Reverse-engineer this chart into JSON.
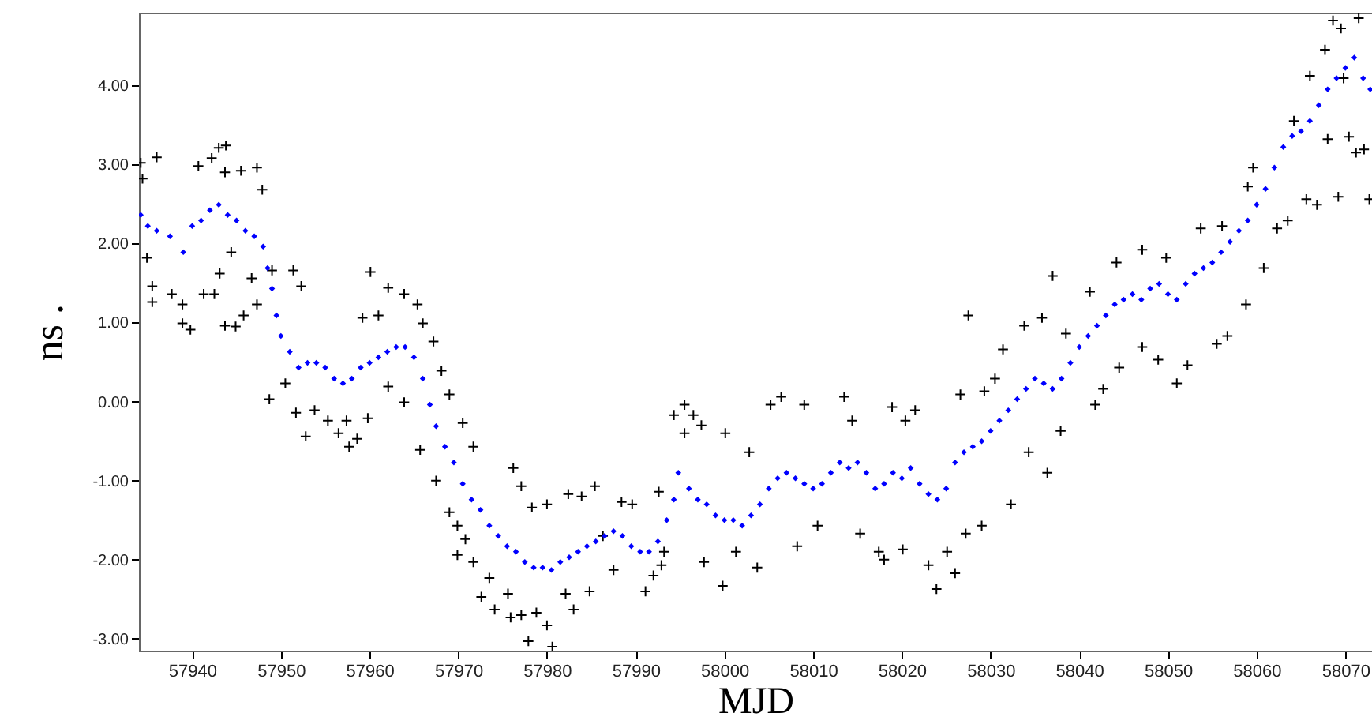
{
  "chart_data": {
    "type": "scatter",
    "xlabel": "MJD",
    "ylabel": "ns .",
    "xlim": [
      57934,
      58073
    ],
    "ylim": [
      -3.15,
      4.92
    ],
    "xticks": [
      57940,
      57950,
      57960,
      57970,
      57980,
      57990,
      58000,
      58010,
      58020,
      58030,
      58040,
      58050,
      58060,
      58070
    ],
    "yticks": [
      {
        "value": -3,
        "label": "-3.00"
      },
      {
        "value": -2,
        "label": "-2.00"
      },
      {
        "value": -1,
        "label": "-1.00"
      },
      {
        "value": 0,
        "label": "0.00"
      },
      {
        "value": 1,
        "label": "1.00"
      },
      {
        "value": 2,
        "label": "2.00"
      },
      {
        "value": 3,
        "label": "3.00"
      },
      {
        "value": 4,
        "label": "4.00"
      }
    ],
    "grid": false,
    "series": [
      {
        "color": "#000000",
        "marker": "cross",
        "x": [
          57934.2,
          57936,
          57934.4,
          57934.9,
          57935.5,
          57935.5,
          57937.7,
          57938.9,
          57938.9,
          57939.8,
          57941.3,
          57942.5,
          57940.7,
          57942.2,
          57943,
          57943.8,
          57943.7,
          57945.5,
          57947.3,
          57947.9,
          57943.7,
          57944.9,
          57945.8,
          57947.3,
          57946.7,
          57943.1,
          57944.4,
          57949,
          57951.4,
          57952.3,
          57948.7,
          57950.5,
          57951.7,
          57952.8,
          57953.8,
          57955.3,
          57956.5,
          57957.7,
          57958.6,
          57959.8,
          57957.4,
          57960.1,
          57962.1,
          57963.9,
          57965.4,
          57966,
          57959.2,
          57961,
          57962.1,
          57963.9,
          57965.7,
          57967.2,
          57968.1,
          57969,
          57970.5,
          57971.7,
          57967.5,
          57969,
          57969.9,
          57970.8,
          57969.9,
          57971.7,
          57972.6,
          57974.1,
          57973.5,
          57975.6,
          57975.9,
          57977.1,
          57977.9,
          57978.8,
          57980,
          57980.6,
          57976.2,
          57977.1,
          57978.3,
          57980,
          57982.4,
          57983.9,
          57985.4,
          57983,
          57982.1,
          57984.8,
          57986.3,
          57987.5,
          57988.4,
          57989.6,
          57991.1,
          57992,
          57993.2,
          57992.9,
          57992.6,
          57994.3,
          57995.5,
          57995.5,
          57996.5,
          57997.4,
          58000.1,
          57997.7,
          57999.8,
          58001.3,
          58003.7,
          58002.8,
          58005.2,
          58006.4,
          58009,
          58008.2,
          58010.5,
          58013.5,
          58014.4,
          58015.3,
          58017.4,
          58018,
          58018.9,
          58020.4,
          58021.5,
          58020.1,
          58023,
          58023.9,
          58025.1,
          58026,
          58027.2,
          58029,
          58027.5,
          58026.6,
          58029.3,
          58030.5,
          58032.3,
          58031.4,
          58033.8,
          58035.8,
          58036.4,
          58034.3,
          58037,
          58038.5,
          58037.9,
          58041.8,
          58042.7,
          58041.2,
          58044.2,
          58047.1,
          58044.5,
          58047.1,
          58048.9,
          58051,
          58052.2,
          58055.5,
          58056.7,
          58049.8,
          58053.7,
          58056.1,
          58058.8,
          58060.8,
          58059,
          58059.6,
          58062.3,
          58063.5,
          58065.6,
          58066.8,
          58069.2,
          58064.2,
          58066,
          58067.7,
          58068.6,
          58069.5,
          58071.5,
          58070.4,
          58071.2,
          58072.1,
          58072.7,
          58068,
          58069.8
        ],
        "values": [
          3.02,
          3.09,
          2.82,
          1.82,
          1.46,
          1.26,
          1.36,
          1.23,
          0.99,
          0.91,
          1.36,
          1.36,
          2.98,
          3.08,
          3.21,
          3.24,
          2.9,
          2.92,
          2.96,
          2.68,
          0.96,
          0.95,
          1.09,
          1.23,
          1.56,
          1.62,
          1.89,
          1.66,
          1.66,
          1.46,
          0.03,
          0.23,
          -0.14,
          -0.44,
          -0.11,
          -0.24,
          -0.4,
          -0.57,
          -0.47,
          -0.21,
          -0.24,
          1.64,
          1.44,
          1.36,
          1.23,
          0.99,
          1.06,
          1.09,
          0.19,
          -0.01,
          -0.61,
          0.76,
          0.39,
          0.09,
          -0.27,
          -0.57,
          -1,
          -1.4,
          -1.57,
          -1.74,
          -1.94,
          -2.03,
          -2.47,
          -2.63,
          -2.23,
          -2.43,
          -2.73,
          -2.7,
          -3.03,
          -2.67,
          -2.83,
          -3.1,
          -0.84,
          -1.07,
          -1.34,
          -1.3,
          -1.17,
          -1.2,
          -1.07,
          -2.63,
          -2.43,
          -2.4,
          -1.7,
          -2.13,
          -1.27,
          -1.3,
          -2.4,
          -2.2,
          -1.9,
          -2.07,
          -1.14,
          -0.17,
          -0.04,
          -0.4,
          -0.17,
          -0.3,
          -0.4,
          -2.03,
          -2.33,
          -1.9,
          -2.1,
          -0.64,
          -0.04,
          0.06,
          -0.04,
          -1.83,
          -1.57,
          0.06,
          -0.24,
          -1.67,
          -1.9,
          -2,
          -0.07,
          -0.24,
          -0.11,
          -1.87,
          -2.07,
          -2.37,
          -1.9,
          -2.17,
          -1.67,
          -1.57,
          1.09,
          0.09,
          0.13,
          0.29,
          -1.3,
          0.66,
          0.96,
          1.06,
          -0.9,
          -0.64,
          1.59,
          0.86,
          -0.37,
          -0.04,
          0.16,
          1.39,
          1.76,
          1.92,
          0.43,
          0.69,
          0.53,
          0.23,
          0.46,
          0.73,
          0.83,
          1.82,
          2.19,
          2.22,
          1.23,
          1.69,
          2.72,
          2.96,
          2.19,
          2.29,
          2.56,
          2.49,
          2.59,
          3.55,
          4.12,
          4.45,
          4.82,
          4.72,
          4.85,
          3.35,
          3.15,
          3.19,
          2.56,
          3.32,
          4.09
        ]
      },
      {
        "color": "#0000ff",
        "marker": "diamond",
        "x": [
          57934.2,
          57935,
          57936,
          57937.5,
          57939,
          57940,
          57941,
          57942,
          57943,
          57944,
          57945,
          57946,
          57947,
          57948,
          57948.5,
          57949,
          57949.5,
          57950,
          57951,
          57952,
          57953,
          57954,
          57955,
          57956,
          57957,
          57958,
          57959,
          57960,
          57961,
          57962,
          57963,
          57964,
          57965,
          57966,
          57966.8,
          57967.5,
          57968.5,
          57969.5,
          57970.5,
          57971.5,
          57972.5,
          57973.5,
          57974.5,
          57975.5,
          57976.5,
          57977.5,
          57978.5,
          57979.5,
          57980.5,
          57981.5,
          57982.5,
          57983.5,
          57984.5,
          57985.5,
          57986.5,
          57987.5,
          57988.5,
          57989.5,
          57990.5,
          57991.5,
          57992.5,
          57993.5,
          57994.3,
          57994.8,
          57996,
          57997,
          57998,
          57999,
          58000,
          58001,
          58002,
          58003,
          58004,
          58005,
          58006,
          58007,
          58008,
          58009,
          58010,
          58011,
          58012,
          58013,
          58014,
          58015,
          58016,
          58017,
          58018,
          58019,
          58020,
          58021,
          58022,
          58023,
          58024,
          58025,
          58026,
          58027,
          58028,
          58029,
          58030,
          58031,
          58032,
          58033,
          58034,
          58035,
          58036,
          58037,
          58038,
          58039,
          58040,
          58041,
          58042,
          58043,
          58044,
          58045,
          58046,
          58047,
          58048,
          58049,
          58050,
          58051,
          58052,
          58053,
          58054,
          58055,
          58056,
          58057,
          58058,
          58059,
          58060,
          58061,
          58062,
          58063,
          58064,
          58065,
          58066,
          58067,
          58068,
          58069,
          58070,
          58071,
          58072,
          58072.8
        ],
        "values": [
          2.36,
          2.22,
          2.16,
          2.09,
          1.89,
          2.22,
          2.29,
          2.42,
          2.49,
          2.36,
          2.29,
          2.16,
          2.09,
          1.96,
          1.69,
          1.43,
          1.09,
          0.83,
          0.63,
          0.43,
          0.49,
          0.49,
          0.43,
          0.29,
          0.23,
          0.29,
          0.43,
          0.49,
          0.56,
          0.63,
          0.69,
          0.69,
          0.56,
          0.29,
          -0.04,
          -0.31,
          -0.57,
          -0.77,
          -1.04,
          -1.24,
          -1.37,
          -1.57,
          -1.7,
          -1.83,
          -1.9,
          -2.03,
          -2.1,
          -2.1,
          -2.13,
          -2.03,
          -1.97,
          -1.9,
          -1.83,
          -1.77,
          -1.7,
          -1.64,
          -1.7,
          -1.83,
          -1.9,
          -1.9,
          -1.77,
          -1.5,
          -1.24,
          -0.9,
          -1.1,
          -1.24,
          -1.3,
          -1.44,
          -1.5,
          -1.5,
          -1.57,
          -1.44,
          -1.3,
          -1.1,
          -0.97,
          -0.9,
          -0.97,
          -1.04,
          -1.1,
          -1.04,
          -0.9,
          -0.77,
          -0.84,
          -0.77,
          -0.9,
          -1.1,
          -1.04,
          -0.9,
          -0.97,
          -0.84,
          -1.04,
          -1.17,
          -1.24,
          -1.1,
          -0.77,
          -0.64,
          -0.57,
          -0.5,
          -0.37,
          -0.24,
          -0.11,
          0.03,
          0.16,
          0.29,
          0.23,
          0.16,
          0.29,
          0.49,
          0.69,
          0.83,
          0.96,
          1.09,
          1.23,
          1.29,
          1.36,
          1.29,
          1.43,
          1.49,
          1.36,
          1.29,
          1.49,
          1.62,
          1.69,
          1.76,
          1.89,
          2.02,
          2.16,
          2.29,
          2.49,
          2.69,
          2.96,
          3.22,
          3.36,
          3.42,
          3.55,
          3.75,
          3.95,
          4.09,
          4.22,
          4.35,
          4.09,
          3.95
        ]
      }
    ]
  }
}
